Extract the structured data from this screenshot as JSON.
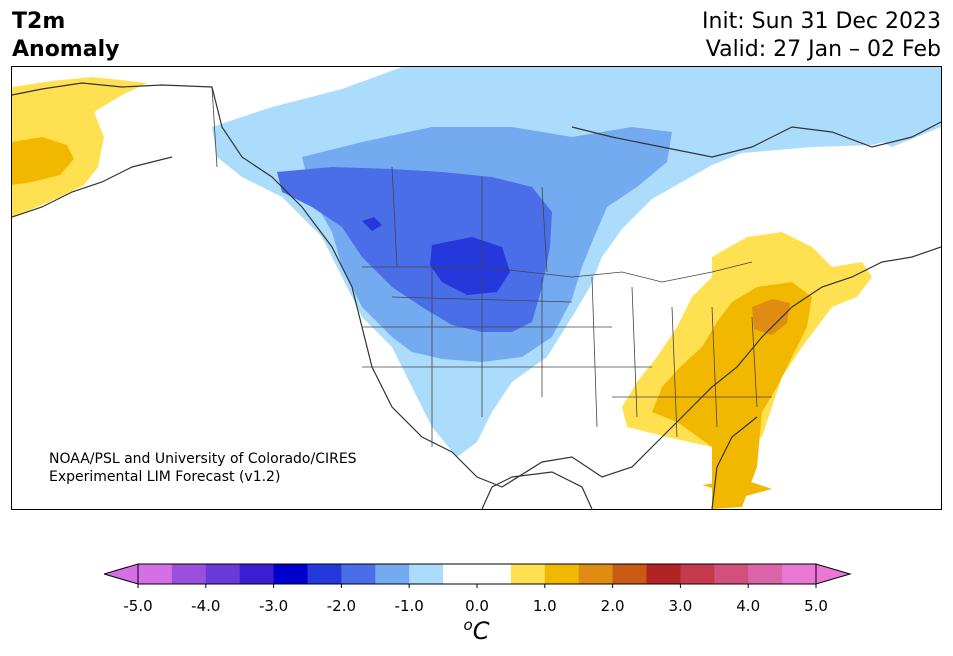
{
  "header": {
    "title_lines": [
      "T2m",
      "Anomaly"
    ],
    "init_label": "Init: Sun 31 Dec 2023",
    "valid_label": "Valid: 27 Jan – 02 Feb"
  },
  "credit": {
    "line1": "NOAA/PSL and University of Colorado/CIRES",
    "line2": "Experimental LIM Forecast (v1.2)"
  },
  "colorbar": {
    "unit_label": "oC",
    "tick_labels": [
      "-5.0",
      "-4.0",
      "-3.0",
      "-2.0",
      "-1.0",
      "0.0",
      "1.0",
      "2.0",
      "3.0",
      "4.0",
      "5.0"
    ],
    "colors": [
      "#d46fe6",
      "#9a4fdc",
      "#6a3ad8",
      "#3a1fd0",
      "#0000cc",
      "#2438dc",
      "#4a6ee8",
      "#74aaf0",
      "#acdcfc",
      "#ffffff",
      "#ffffff",
      "#ffe050",
      "#f2b800",
      "#e08c12",
      "#c85a14",
      "#b02424",
      "#c43a4c",
      "#d2507c",
      "#dc64a8",
      "#e878d4"
    ],
    "over_color": "#e878d4",
    "under_color": "#d46fe6"
  },
  "map": {
    "region": "North America",
    "colors": {
      "light_blue": "#acdcfc",
      "mid_blue": "#74aaf0",
      "blue": "#4a6ee8",
      "dark_blue": "#2438dc",
      "yellow": "#ffe050",
      "gold": "#f2b800",
      "orange": "#e08c12"
    }
  }
}
